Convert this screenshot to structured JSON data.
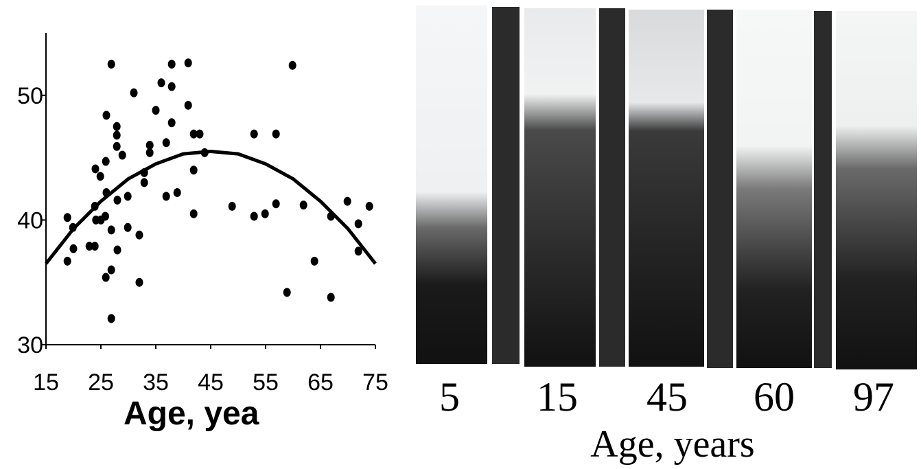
{
  "chart_data": {
    "type": "scatter",
    "xlabel": "Age, yea",
    "xlim": [
      15,
      75
    ],
    "ylim": [
      30,
      55
    ],
    "xticks": [
      15,
      25,
      35,
      45,
      55,
      65,
      75
    ],
    "yticks": [
      30,
      40,
      50
    ],
    "grid": false,
    "series": [
      {
        "type": "scatter",
        "color": "#000000",
        "x": [
          18.9,
          18.9,
          19.9,
          20,
          22.9,
          23.9,
          23.9,
          24,
          24.1,
          24.9,
          25,
          25.8,
          25.9,
          25.9,
          26,
          26,
          26.9,
          26.9,
          26.9,
          26.9,
          27.9,
          27.9,
          27.9,
          28,
          28,
          28.9,
          29.9,
          29.9,
          31,
          32,
          32,
          32.9,
          32.9,
          33.9,
          33.9,
          35,
          36,
          36.9,
          36.9,
          37.9,
          37.9,
          37.9,
          38.9,
          40.9,
          40.9,
          41.9,
          41.9,
          41.9,
          43,
          43.9,
          48.9,
          52.9,
          52.9,
          54.9,
          56.9,
          56.9,
          58.9,
          59.9,
          61.9,
          63.9,
          66.9,
          66.9,
          69.9,
          71.9,
          71.9,
          73.9
        ],
        "values": [
          40.2,
          36.7,
          39.4,
          37.7,
          37.9,
          37.9,
          41.1,
          44.1,
          40,
          43.5,
          40,
          40.3,
          35.4,
          44.7,
          42.2,
          48.4,
          52.5,
          39.2,
          36,
          32.1,
          47.5,
          46.8,
          45.9,
          41.6,
          37.6,
          45.2,
          41.9,
          39.4,
          50.2,
          38.8,
          35,
          43,
          43.8,
          46,
          45.4,
          48.8,
          51,
          46.2,
          41.9,
          52.5,
          50.7,
          47.8,
          42.2,
          52.6,
          49.2,
          44,
          40.5,
          46.9,
          46.9,
          45.4,
          41.1,
          46.9,
          40.3,
          40.5,
          41.3,
          46.9,
          34.2,
          52.4,
          41.2,
          36.7,
          40.3,
          33.8,
          41.5,
          39.7,
          37.5,
          41.1
        ]
      },
      {
        "type": "line",
        "color": "#000000",
        "x": [
          15,
          20,
          25,
          30,
          35,
          40,
          45,
          50,
          55,
          60,
          65,
          70,
          75
        ],
        "values": [
          36.5,
          39.3,
          41.5,
          43.3,
          44.5,
          45.3,
          45.5,
          45.3,
          44.5,
          43.3,
          41.5,
          39.3,
          36.5
        ]
      }
    ]
  },
  "image_panel": {
    "labels": [
      "5",
      "15",
      "45",
      "60",
      "97"
    ],
    "xlabel": "Age, years"
  }
}
